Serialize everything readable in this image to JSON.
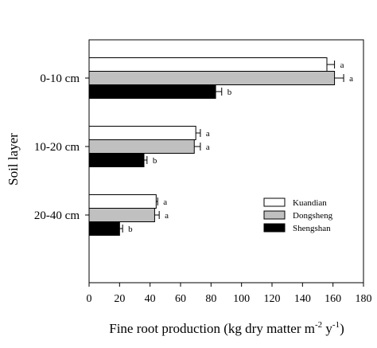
{
  "chart_data": {
    "type": "bar",
    "orientation": "horizontal",
    "categories": [
      "0-10 cm",
      "10-20 cm",
      "20-40 cm"
    ],
    "series": [
      {
        "name": "Kuandian",
        "color": "#ffffff",
        "values": [
          156,
          70,
          44
        ],
        "errors": [
          5,
          3,
          1
        ],
        "letters": [
          "a",
          "a",
          "a"
        ]
      },
      {
        "name": "Dongsheng",
        "color": "#c0c0c0",
        "values": [
          161,
          69,
          43
        ],
        "errors": [
          6,
          4,
          3
        ],
        "letters": [
          "a",
          "a",
          "a"
        ]
      },
      {
        "name": "Shengshan",
        "color": "#000000",
        "values": [
          83,
          36,
          20
        ],
        "errors": [
          4,
          2,
          2
        ],
        "letters": [
          "b",
          "b",
          "b"
        ]
      }
    ],
    "xlim": [
      0,
      180
    ],
    "xticks": [
      0,
      20,
      40,
      60,
      80,
      100,
      120,
      140,
      160,
      180
    ],
    "xlabel": "Fine root production (kg dry matter m",
    "xlabel_exp1": "-2",
    "xlabel_mid": " y",
    "xlabel_exp2": "-1",
    "xlabel_end": ")",
    "ylabel": "Soil layer",
    "legend_position": "lower-right",
    "grid": false
  }
}
